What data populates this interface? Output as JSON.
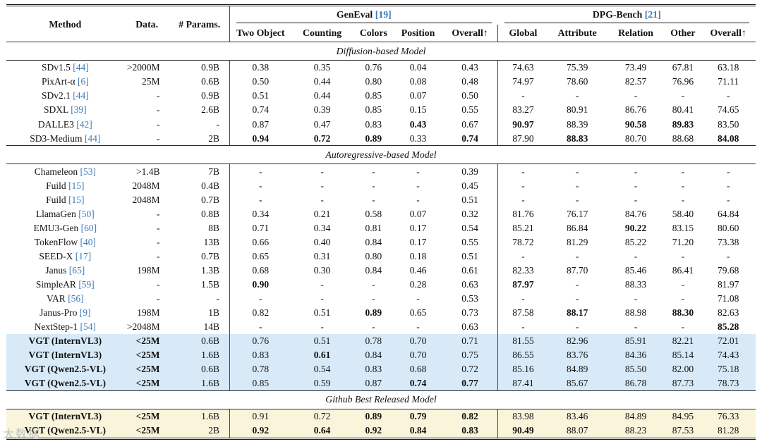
{
  "watermark": "大数据",
  "table": {
    "columns": {
      "method": "Method",
      "data": "Data.",
      "params": "# Params.",
      "geneval": {
        "label": "GenEval",
        "cite": "19",
        "sub": [
          "Two Object",
          "Counting",
          "Colors",
          "Position",
          "Overall↑"
        ]
      },
      "dpg": {
        "label": "DPG-Bench",
        "cite": "21",
        "sub": [
          "Global",
          "Attribute",
          "Relation",
          "Other",
          "Overall↑"
        ]
      }
    },
    "sections": [
      {
        "title": "Diffusion-based Model",
        "rows": [
          {
            "method": "SDv1.5",
            "cite": "44",
            "data": ">2000M",
            "params": "0.9B",
            "values": [
              "0.38",
              "0.35",
              "0.76",
              "0.04",
              "0.43",
              "74.63",
              "75.39",
              "73.49",
              "67.81",
              "63.18"
            ],
            "bold": []
          },
          {
            "method": "PixArt-α",
            "cite": "6",
            "data": "25M",
            "params": "0.6B",
            "values": [
              "0.50",
              "0.44",
              "0.80",
              "0.08",
              "0.48",
              "74.97",
              "78.60",
              "82.57",
              "76.96",
              "71.11"
            ],
            "bold": []
          },
          {
            "method": "SDv2.1",
            "cite": "44",
            "data": "-",
            "params": "0.9B",
            "values": [
              "0.51",
              "0.44",
              "0.85",
              "0.07",
              "0.50",
              "-",
              "-",
              "-",
              "-",
              "-"
            ],
            "bold": []
          },
          {
            "method": "SDXL",
            "cite": "39",
            "data": "-",
            "params": "2.6B",
            "values": [
              "0.74",
              "0.39",
              "0.85",
              "0.15",
              "0.55",
              "83.27",
              "80.91",
              "86.76",
              "80.41",
              "74.65"
            ],
            "bold": []
          },
          {
            "method": "DALLE3",
            "cite": "42",
            "data": "-",
            "params": "-",
            "values": [
              "0.87",
              "0.47",
              "0.83",
              "0.43",
              "0.67",
              "90.97",
              "88.39",
              "90.58",
              "89.83",
              "83.50"
            ],
            "bold": [
              3,
              5,
              7,
              8
            ]
          },
          {
            "method": "SD3-Medium",
            "cite": "44",
            "data": "-",
            "params": "2B",
            "values": [
              "0.94",
              "0.72",
              "0.89",
              "0.33",
              "0.74",
              "87.90",
              "88.83",
              "80.70",
              "88.68",
              "84.08"
            ],
            "bold": [
              0,
              1,
              2,
              4,
              6,
              9
            ]
          }
        ]
      },
      {
        "title": "Autoregressive-based Model",
        "rows": [
          {
            "method": "Chameleon",
            "cite": "53",
            "data": ">1.4B",
            "params": "7B",
            "values": [
              "-",
              "-",
              "-",
              "-",
              "0.39",
              "-",
              "-",
              "-",
              "-",
              "-"
            ],
            "bold": []
          },
          {
            "method": "Fuild",
            "cite": "15",
            "data": "2048M",
            "params": "0.4B",
            "values": [
              "-",
              "-",
              "-",
              "-",
              "0.45",
              "-",
              "-",
              "-",
              "-",
              "-"
            ],
            "bold": []
          },
          {
            "method": "Fuild",
            "cite": "15",
            "data": "2048M",
            "params": "0.7B",
            "values": [
              "-",
              "-",
              "-",
              "-",
              "0.51",
              "-",
              "-",
              "-",
              "-",
              "-"
            ],
            "bold": []
          },
          {
            "method": "LlamaGen",
            "cite": "50",
            "data": "-",
            "params": "0.8B",
            "values": [
              "0.34",
              "0.21",
              "0.58",
              "0.07",
              "0.32",
              "81.76",
              "76.17",
              "84.76",
              "58.40",
              "64.84"
            ],
            "bold": []
          },
          {
            "method": "EMU3-Gen",
            "cite": "60",
            "data": "-",
            "params": "8B",
            "values": [
              "0.71",
              "0.34",
              "0.81",
              "0.17",
              "0.54",
              "85.21",
              "86.84",
              "90.22",
              "83.15",
              "80.60"
            ],
            "bold": [
              7
            ]
          },
          {
            "method": "TokenFlow",
            "cite": "40",
            "data": "-",
            "params": "13B",
            "values": [
              "0.66",
              "0.40",
              "0.84",
              "0.17",
              "0.55",
              "78.72",
              "81.29",
              "85.22",
              "71.20",
              "73.38"
            ],
            "bold": []
          },
          {
            "method": "SEED-X",
            "cite": "17",
            "data": "-",
            "params": "0.7B",
            "values": [
              "0.65",
              "0.31",
              "0.80",
              "0.18",
              "0.51",
              "-",
              "-",
              "-",
              "-",
              "-"
            ],
            "bold": []
          },
          {
            "method": "Janus",
            "cite": "65",
            "data": "198M",
            "params": "1.3B",
            "values": [
              "0.68",
              "0.30",
              "0.84",
              "0.46",
              "0.61",
              "82.33",
              "87.70",
              "85.46",
              "86.41",
              "79.68"
            ],
            "bold": []
          },
          {
            "method": "SimpleAR",
            "cite": "59",
            "data": "-",
            "params": "1.5B",
            "values": [
              "0.90",
              "-",
              "-",
              "0.28",
              "0.63",
              "87.97",
              "-",
              "88.33",
              "-",
              "81.97"
            ],
            "bold": [
              0,
              5
            ]
          },
          {
            "method": "VAR",
            "cite": "56",
            "data": "-",
            "params": "-",
            "values": [
              "-",
              "-",
              "-",
              "-",
              "0.53",
              "-",
              "-",
              "-",
              "-",
              "71.08"
            ],
            "bold": []
          },
          {
            "method": "Janus-Pro",
            "cite": "9",
            "data": "198M",
            "params": "1B",
            "values": [
              "0.82",
              "0.51",
              "0.89",
              "0.65",
              "0.73",
              "87.58",
              "88.17",
              "88.98",
              "88.30",
              "82.63"
            ],
            "bold": [
              2,
              6,
              8
            ]
          },
          {
            "method": "NextStep-1",
            "cite": "54",
            "data": ">2048M",
            "params": "14B",
            "values": [
              "-",
              "-",
              "-",
              "-",
              "0.63",
              "-",
              "-",
              "-",
              "-",
              "85.28"
            ],
            "bold": [
              9
            ]
          },
          {
            "method": "VGT (InternVL3)",
            "cite": "",
            "data": "<25M",
            "params": "0.6B",
            "highlight": "blue",
            "strong": true,
            "values": [
              "0.76",
              "0.51",
              "0.78",
              "0.70",
              "0.71",
              "81.55",
              "82.96",
              "85.91",
              "82.21",
              "72.01"
            ],
            "bold": []
          },
          {
            "method": "VGT (InternVL3)",
            "cite": "",
            "data": "<25M",
            "params": "1.6B",
            "highlight": "blue",
            "strong": true,
            "values": [
              "0.83",
              "0.61",
              "0.84",
              "0.70",
              "0.75",
              "86.55",
              "83.76",
              "84.36",
              "85.14",
              "74.43"
            ],
            "bold": [
              1
            ]
          },
          {
            "method": "VGT (Qwen2.5-VL)",
            "cite": "",
            "data": "<25M",
            "params": "0.6B",
            "highlight": "blue",
            "strong": true,
            "values": [
              "0.78",
              "0.54",
              "0.83",
              "0.68",
              "0.72",
              "85.16",
              "84.89",
              "85.50",
              "82.00",
              "75.18"
            ],
            "bold": []
          },
          {
            "method": "VGT (Qwen2.5-VL)",
            "cite": "",
            "data": "<25M",
            "params": "1.6B",
            "highlight": "blue",
            "strong": true,
            "values": [
              "0.85",
              "0.59",
              "0.87",
              "0.74",
              "0.77",
              "87.41",
              "85.67",
              "86.78",
              "87.73",
              "78.73"
            ],
            "bold": [
              3,
              4
            ]
          }
        ]
      },
      {
        "title": "Github Best Released Model",
        "rows": [
          {
            "method": "VGT (InternVL3)",
            "cite": "",
            "data": "<25M",
            "params": "1.6B",
            "highlight": "cream",
            "strong": true,
            "values": [
              "0.91",
              "0.72",
              "0.89",
              "0.79",
              "0.82",
              "83.98",
              "83.46",
              "84.89",
              "84.95",
              "76.33"
            ],
            "bold": [
              2,
              3,
              4
            ]
          },
          {
            "method": "VGT (Qwen2.5-VL)",
            "cite": "",
            "data": "<25M",
            "params": "2B",
            "highlight": "cream",
            "strong": true,
            "values": [
              "0.92",
              "0.64",
              "0.92",
              "0.84",
              "0.83",
              "90.49",
              "88.07",
              "88.23",
              "87.53",
              "81.28"
            ],
            "bold": [
              0,
              1,
              2,
              3,
              4,
              5
            ]
          }
        ]
      }
    ]
  }
}
